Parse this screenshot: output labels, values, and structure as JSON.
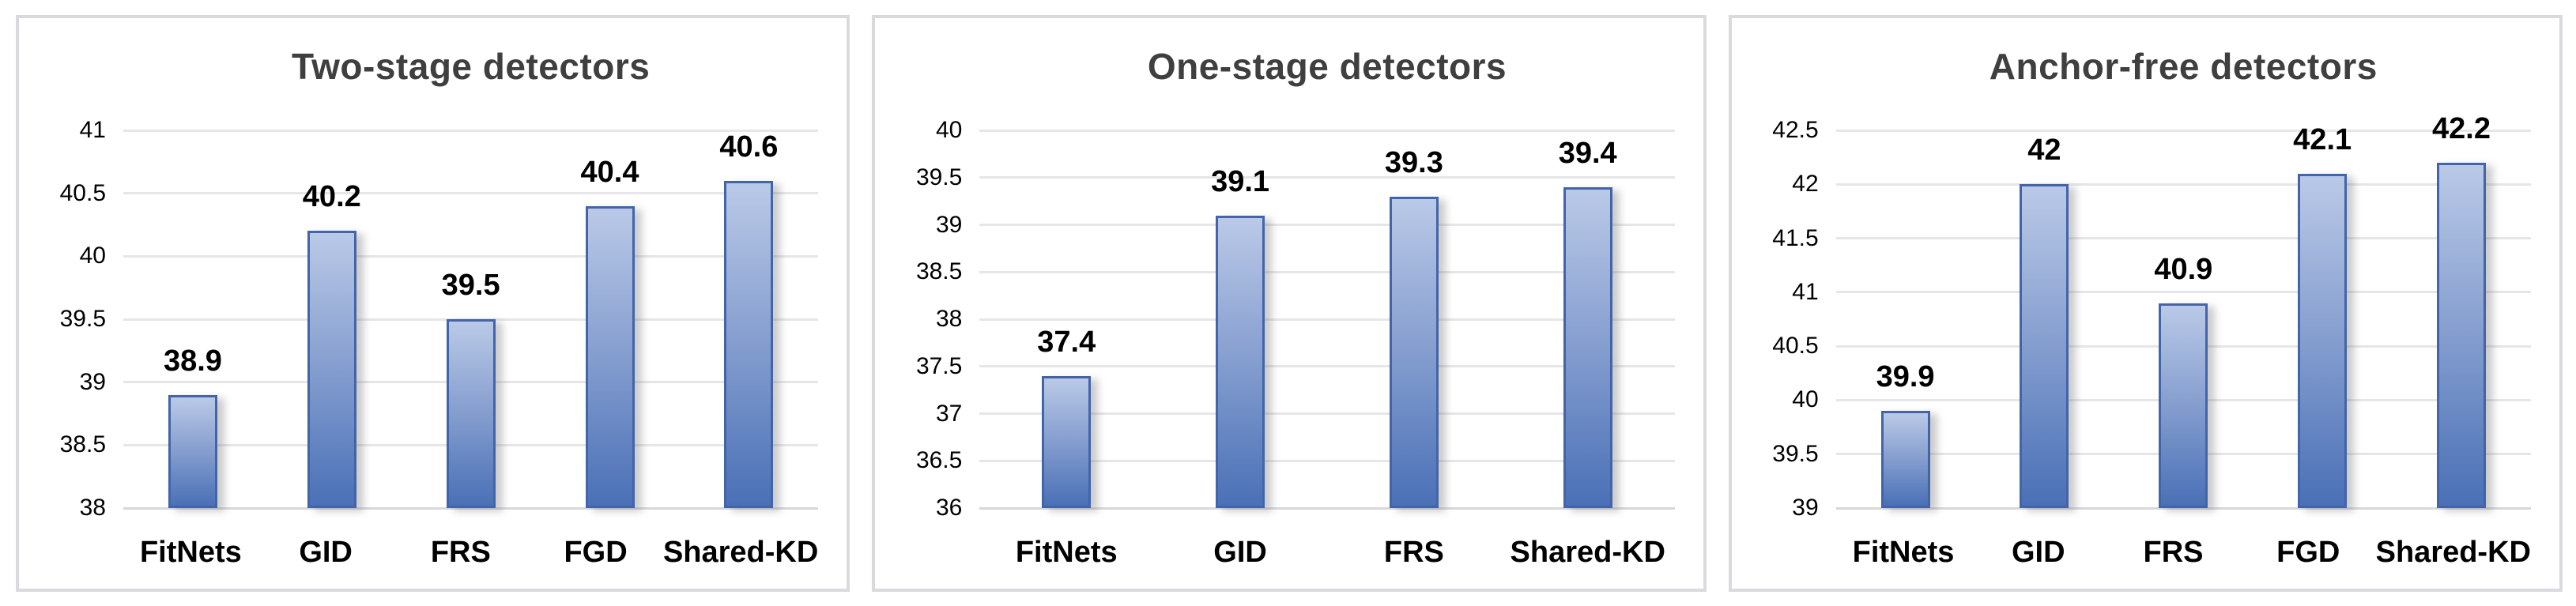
{
  "style": {
    "background": "#ffffff",
    "panel_border": "#dadade",
    "title_color": "#3f3f3f",
    "grid_color": "#e6e6ea",
    "axis_line_color": "#d8d8dc",
    "label_color": "#000000",
    "bar_fill_top": "#bac9e7",
    "bar_fill_bottom": "#4a70b6",
    "bar_border": "#4264aa"
  },
  "chart_data": [
    {
      "type": "bar",
      "title": "Two-stage detectors",
      "categories": [
        "FitNets",
        "GID",
        "FRS",
        "FGD",
        "Shared-KD"
      ],
      "values": [
        38.9,
        40.2,
        39.5,
        40.4,
        40.6
      ],
      "labels": [
        "38.9",
        "40.2",
        "39.5",
        "40.4",
        "40.6"
      ],
      "ylim": [
        38,
        41
      ],
      "ytick_step": 0.5,
      "yticks": [
        "41",
        "40.5",
        "40",
        "39.5",
        "39",
        "38.5",
        "38"
      ],
      "xlabel": "",
      "ylabel": "",
      "grid": true,
      "legend_position": "none"
    },
    {
      "type": "bar",
      "title": "One-stage detectors",
      "categories": [
        "FitNets",
        "GID",
        "FRS",
        "Shared-KD"
      ],
      "values": [
        37.4,
        39.1,
        39.3,
        39.4
      ],
      "labels": [
        "37.4",
        "39.1",
        "39.3",
        "39.4"
      ],
      "ylim": [
        36,
        40
      ],
      "ytick_step": 0.5,
      "yticks": [
        "40",
        "39.5",
        "39",
        "38.5",
        "38",
        "37.5",
        "37",
        "36.5",
        "36"
      ],
      "xlabel": "",
      "ylabel": "",
      "grid": true,
      "legend_position": "none"
    },
    {
      "type": "bar",
      "title": "Anchor-free detectors",
      "categories": [
        "FitNets",
        "GID",
        "FRS",
        "FGD",
        "Shared-KD"
      ],
      "values": [
        39.9,
        42,
        40.9,
        42.1,
        42.2
      ],
      "labels": [
        "39.9",
        "42",
        "40.9",
        "42.1",
        "42.2"
      ],
      "ylim": [
        39,
        42.5
      ],
      "ytick_step": 0.5,
      "yticks": [
        "42.5",
        "42",
        "41.5",
        "41",
        "40.5",
        "40",
        "39.5",
        "39"
      ],
      "xlabel": "",
      "ylabel": "",
      "grid": true,
      "legend_position": "none"
    }
  ]
}
